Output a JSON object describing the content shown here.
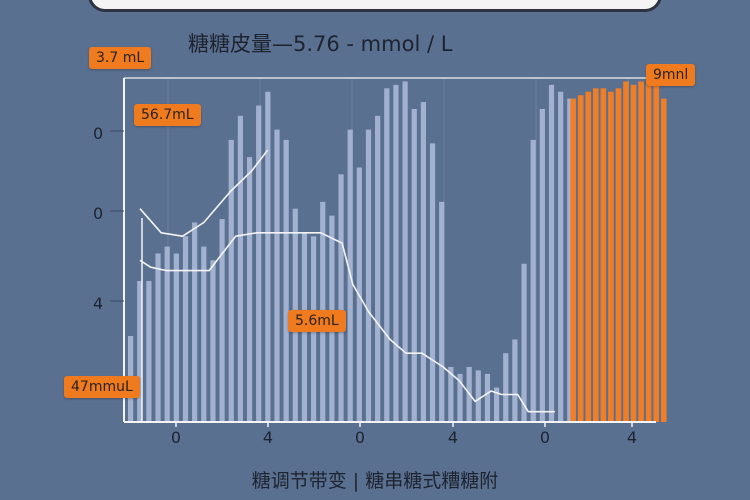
{
  "banner": {
    "text": ""
  },
  "chart_data": {
    "type": "bar",
    "title": "糖糖皮量—5.76 - mmol / L",
    "footer": "糖调节带变 | 糖串糖式糟糖附",
    "ytick_labels": [
      "0",
      "0",
      "4"
    ],
    "xtick_labels": [
      "0",
      "4",
      "0",
      "4",
      "0",
      "4"
    ],
    "annotations": [
      {
        "text": "3.7 mL"
      },
      {
        "text": "56.7mL"
      },
      {
        "text": "5.6mL"
      },
      {
        "text": "47mmuL"
      },
      {
        "text": "9mnl"
      }
    ],
    "ylim": [
      0,
      100
    ],
    "series": [
      {
        "color": "#aab8d6",
        "values": [
          25,
          41,
          41,
          49,
          51,
          49,
          54,
          58,
          51,
          47,
          59,
          82,
          89,
          77,
          92,
          96,
          85,
          82,
          62,
          55,
          54,
          64,
          60,
          72,
          85,
          74,
          85,
          89,
          97,
          98,
          99,
          91,
          93,
          81,
          64,
          16,
          14,
          16,
          15,
          14,
          10,
          20,
          24,
          46,
          82,
          91,
          98,
          96,
          94
        ]
      },
      {
        "color": "#f07e26",
        "values": [
          94,
          95,
          96,
          97,
          97,
          96,
          97,
          99,
          98,
          99,
          98,
          100,
          94
        ]
      }
    ],
    "line": {
      "color": "#f4f4f4",
      "x": [
        0.03,
        0.05,
        0.08,
        0.11,
        0.16,
        0.21,
        0.25,
        0.29,
        0.33,
        0.37,
        0.41,
        0.43,
        0.46,
        0.5,
        0.53,
        0.56,
        0.6,
        0.63,
        0.66,
        0.69,
        0.71,
        0.74,
        0.76,
        0.78,
        0.81
      ],
      "y": [
        47,
        45,
        44,
        44,
        44,
        54,
        55,
        55,
        55,
        55,
        52,
        40,
        32,
        24,
        20,
        20,
        16,
        12,
        6,
        9,
        8,
        8,
        3,
        3,
        3
      ]
    },
    "line2": {
      "color": "#f4f4f4",
      "x": [
        0.03,
        0.07,
        0.11,
        0.15,
        0.2,
        0.24,
        0.27
      ],
      "y": [
        62,
        55,
        54,
        58,
        67,
        73,
        79
      ]
    }
  }
}
